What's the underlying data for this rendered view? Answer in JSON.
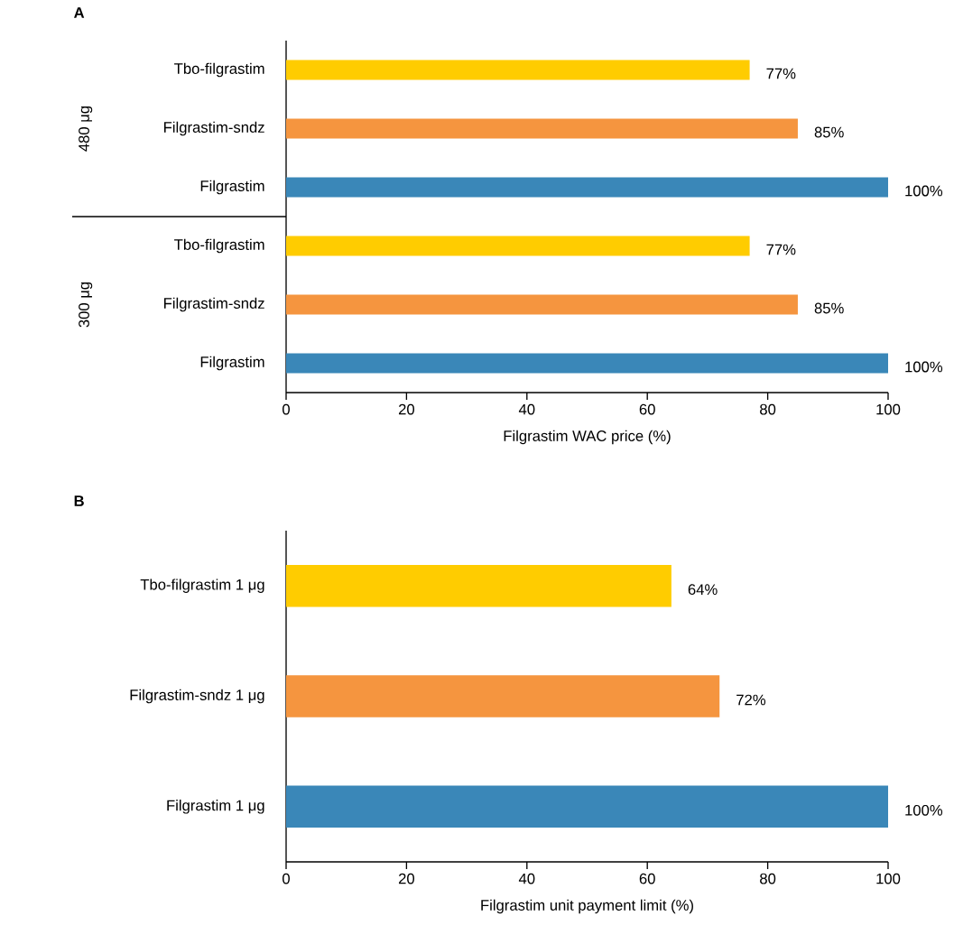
{
  "chart_data": [
    {
      "type": "bar",
      "orientation": "horizontal",
      "title": "A",
      "xlabel": "Filgrastim WAC price (%)",
      "categories": [
        "Tbo-filgrastim",
        "Filgrastim-sndz",
        "Filgrastim",
        "Tbo-filgrastim",
        "Filgrastim-sndz",
        "Filgrastim"
      ],
      "values": [
        77,
        85,
        100,
        77,
        85,
        100
      ],
      "colors": [
        "#ffcc00",
        "#f5953f",
        "#3a87b8",
        "#ffcc00",
        "#f5953f",
        "#3a87b8"
      ],
      "value_labels": [
        "77%",
        "85%",
        "100%",
        "77%",
        "85%",
        "100%"
      ],
      "xlim": [
        0,
        100
      ],
      "xticks": [
        0,
        20,
        40,
        60,
        80,
        100
      ],
      "annotations": [
        "480 μg",
        "300 μg"
      ]
    },
    {
      "type": "bar",
      "orientation": "horizontal",
      "title": "B",
      "xlabel": "Filgrastim unit payment limit (%)",
      "categories": [
        "Tbo-filgrastim 1 μg",
        "Filgrastim-sndz 1 μg",
        "Filgrastim 1 μg"
      ],
      "values": [
        64,
        72,
        100
      ],
      "colors": [
        "#ffcc00",
        "#f5953f",
        "#3a87b8"
      ],
      "value_labels": [
        "64%",
        "72%",
        "100%"
      ],
      "xlim": [
        0,
        100
      ],
      "xticks": [
        0,
        20,
        40,
        60,
        80,
        100
      ]
    }
  ]
}
